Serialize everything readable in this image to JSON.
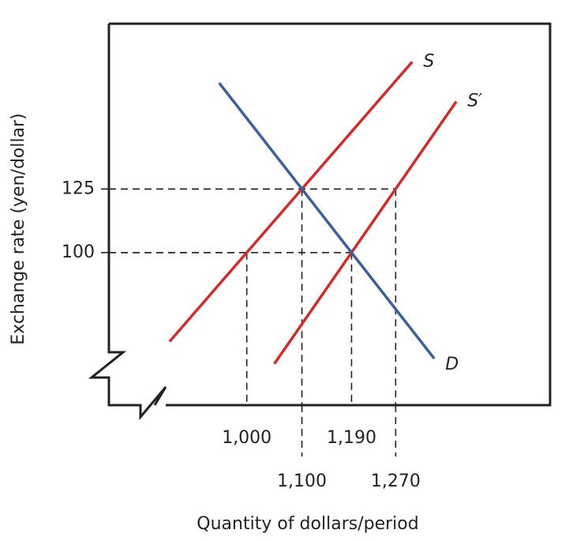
{
  "chart_data": {
    "type": "line",
    "xlabel": "Quantity of dollars/period",
    "ylabel": "Exchange rate (yen/dollar)",
    "xlim": [
      750,
      1550
    ],
    "ylim": [
      40,
      190
    ],
    "xticks": [
      {
        "value": 1000,
        "label": "1,000"
      },
      {
        "value": 1100,
        "label": "1,100"
      },
      {
        "value": 1190,
        "label": "1,190"
      },
      {
        "value": 1270,
        "label": "1,270"
      }
    ],
    "yticks": [
      100,
      125
    ],
    "series": [
      {
        "name": "S",
        "color": "#d42a2a",
        "x": [
          860,
          1300
        ],
        "values": [
          65,
          175
        ]
      },
      {
        "name": "S′",
        "color": "#d42a2a",
        "x": [
          1050,
          1380
        ],
        "values": [
          56.25,
          159.4
        ]
      },
      {
        "name": "D",
        "color": "#3a5fa0",
        "x": [
          950,
          1340
        ],
        "values": [
          166.7,
          58.3
        ]
      }
    ],
    "points": {
      "x": [
        1000,
        1100,
        1190,
        1270
      ],
      "values": [
        100,
        125,
        100,
        125
      ]
    }
  }
}
